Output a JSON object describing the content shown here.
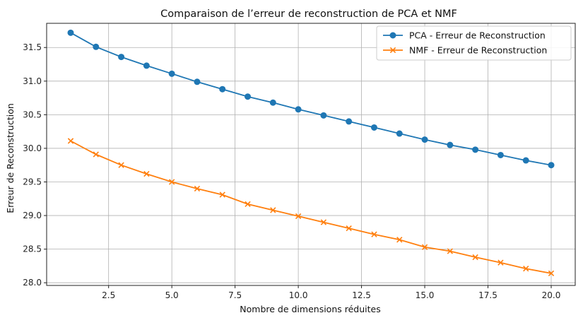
{
  "chart_data": {
    "type": "line",
    "title": "Comparaison de l’erreur de reconstruction de PCA et NMF",
    "xlabel": "Nombre de dimensions réduites",
    "ylabel": "Erreur de Reconstruction",
    "xlim": [
      0.05,
      20.95
    ],
    "ylim": [
      27.96,
      31.86
    ],
    "xticks": [
      "2.5",
      "5.0",
      "7.5",
      "10.0",
      "12.5",
      "15.0",
      "17.5",
      "20.0"
    ],
    "yticks": [
      "28.0",
      "28.5",
      "29.0",
      "29.5",
      "30.0",
      "30.5",
      "31.0",
      "31.5"
    ],
    "grid": true,
    "legend_position": "top-right",
    "x": [
      1,
      2,
      3,
      4,
      5,
      6,
      7,
      8,
      9,
      10,
      11,
      12,
      13,
      14,
      15,
      16,
      17,
      18,
      19,
      20
    ],
    "series": [
      {
        "name": "PCA - Erreur de Reconstruction",
        "color": "#1f77b4",
        "marker": "circle",
        "values": [
          31.72,
          31.51,
          31.36,
          31.23,
          31.11,
          30.99,
          30.88,
          30.77,
          30.68,
          30.58,
          30.49,
          30.4,
          30.31,
          30.22,
          30.13,
          30.05,
          29.98,
          29.9,
          29.82,
          29.75
        ]
      },
      {
        "name": "NMF - Erreur de Reconstruction",
        "color": "#ff7f0e",
        "marker": "x",
        "values": [
          30.11,
          29.91,
          29.75,
          29.62,
          29.5,
          29.4,
          29.31,
          29.17,
          29.08,
          28.99,
          28.9,
          28.81,
          28.72,
          28.64,
          28.53,
          28.47,
          28.38,
          28.3,
          28.21,
          28.14
        ]
      }
    ]
  }
}
